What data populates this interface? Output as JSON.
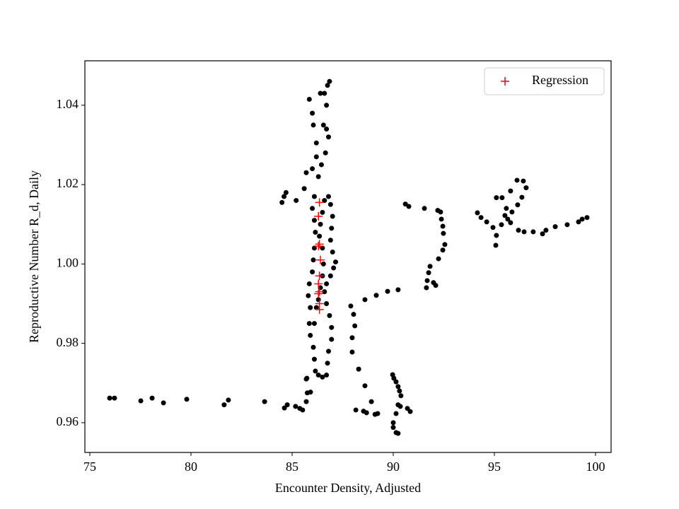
{
  "chart_data": {
    "type": "scatter",
    "xlabel": "Encounter Density, Adjusted",
    "ylabel": "Reproductive Number R_d, Daily",
    "xlim": [
      74.755,
      100.77
    ],
    "ylim": [
      0.9525,
      1.0512
    ],
    "xticks": [
      75,
      80,
      85,
      90,
      95,
      100
    ],
    "yticks": [
      0.96,
      0.98,
      {
        "value": 1,
        "label": "1.00"
      },
      1.02,
      1.04
    ],
    "legend": "upper right",
    "series": [
      {
        "color": "#000000",
        "marker": "circle",
        "x": [
          75.98,
          76.22,
          77.52,
          78.08,
          78.64,
          79.79,
          81.64,
          81.85,
          83.64,
          84.62,
          84.76,
          85.17,
          85.38,
          85.52,
          85.7,
          85.91,
          85.73,
          85.85,
          86.0,
          86.05,
          86.2,
          86.4,
          86.6,
          86.75,
          86.85,
          86.7,
          86.55,
          86.7,
          86.8,
          86.65,
          86.45,
          86.3,
          86.2,
          86.0,
          85.7,
          85.6,
          85.2,
          84.5,
          84.6,
          84.7,
          86.1,
          86.0,
          86.1,
          86.15,
          86.1,
          86.05,
          86.0,
          85.85,
          85.8,
          85.9,
          85.85,
          85.9,
          86.05,
          86.1,
          86.15,
          86.3,
          86.5,
          86.7,
          86.75,
          86.8,
          86.95,
          86.95,
          86.85,
          86.7,
          86.6,
          86.7,
          86.9,
          87.05,
          87.15,
          87.0,
          86.9,
          86.95,
          87.0,
          86.9,
          86.8,
          86.6,
          86.5,
          86.4,
          86.35,
          86.5,
          86.55,
          86.5,
          86.4,
          86.3,
          86.2,
          86.1,
          85.7,
          85.75,
          90.24,
          89.72,
          89.16,
          88.6,
          87.9,
          88.04,
          88.1,
          87.97,
          87.97,
          88.29,
          88.6,
          88.92,
          88.15,
          88.53,
          88.68,
          89.1,
          89.23,
          89.97,
          90.03,
          90.14,
          90.24,
          90.31,
          90.38,
          90.24,
          90.14,
          90.35,
          90.7,
          90.84,
          90.0,
          90.0,
          90.14,
          90.24,
          90.6,
          90.77,
          91.54,
          92.2,
          92.34,
          92.38,
          92.45,
          92.48,
          92.55,
          92.45,
          92.24,
          91.82,
          91.75,
          91.68,
          91.64,
          91.99,
          92.1,
          94.16,
          94.34,
          94.62,
          94.93,
          95.1,
          95.07,
          95.35,
          95.66,
          95.87,
          96.15,
          96.36,
          96.57,
          96.43,
          96.12,
          95.8,
          95.38,
          95.1,
          95.59,
          95.52,
          95.8,
          96.19,
          96.47,
          96.92,
          97.38,
          97.55,
          98.01,
          98.6,
          99.16,
          99.34,
          99.58
        ],
        "values": [
          0.9662,
          0.9662,
          0.9655,
          0.9662,
          0.965,
          0.9659,
          0.9645,
          0.9657,
          0.9653,
          0.9637,
          0.9645,
          0.9641,
          0.9636,
          0.9632,
          0.9653,
          0.9677,
          0.9712,
          1.0415,
          1.038,
          1.035,
          1.0305,
          1.043,
          1.043,
          1.045,
          1.046,
          1.04,
          1.035,
          1.034,
          1.032,
          1.028,
          1.025,
          1.022,
          1.027,
          1.024,
          1.023,
          1.019,
          1.016,
          1.0155,
          1.017,
          1.018,
          1.017,
          1.014,
          1.011,
          1.008,
          1.004,
          1.001,
          0.998,
          0.995,
          0.992,
          0.989,
          0.985,
          0.982,
          0.979,
          0.976,
          0.973,
          0.972,
          0.9715,
          0.972,
          0.975,
          0.978,
          0.981,
          0.984,
          0.987,
          0.99,
          0.993,
          0.995,
          0.997,
          0.999,
          1.0005,
          1.003,
          1.006,
          1.009,
          1.012,
          1.015,
          1.017,
          1.016,
          1.013,
          1.01,
          1.007,
          1.004,
          1.0,
          0.997,
          0.994,
          0.991,
          0.989,
          0.985,
          0.971,
          0.9675,
          0.9935,
          0.9931,
          0.9921,
          0.991,
          0.9894,
          0.9873,
          0.9844,
          0.9814,
          0.9778,
          0.9735,
          0.9693,
          0.9653,
          0.9632,
          0.9629,
          0.9625,
          0.9621,
          0.9623,
          0.9721,
          0.9712,
          0.9703,
          0.9691,
          0.968,
          0.9668,
          0.9645,
          0.9623,
          0.9641,
          0.9636,
          0.9628,
          0.96,
          0.9588,
          0.9575,
          0.9573,
          1.0151,
          1.0145,
          1.014,
          1.0135,
          1.0131,
          1.0113,
          1.0095,
          1.0077,
          1.0049,
          1.0035,
          1.0013,
          0.9994,
          0.9978,
          0.9958,
          0.994,
          0.9953,
          0.9946,
          1.0129,
          1.0117,
          1.0106,
          1.0092,
          1.0072,
          1.0047,
          1.0099,
          1.0113,
          1.0131,
          1.0149,
          1.0168,
          1.0192,
          1.0209,
          1.0211,
          1.0184,
          1.0167,
          1.0167,
          1.014,
          1.0122,
          1.0104,
          1.0085,
          1.0081,
          1.0081,
          1.0076,
          1.0085,
          1.0094,
          1.0099,
          1.0106,
          1.0113,
          1.0117
        ]
      },
      {
        "name": "Regression",
        "color": "#ff0000",
        "marker": "plus",
        "x": [
          86.35,
          86.3,
          86.35,
          86.3,
          86.4,
          86.35,
          86.3,
          86.35,
          86.3,
          86.35,
          86.35
        ],
        "values": [
          1.0155,
          1.012,
          1.005,
          1.0045,
          1.001,
          0.997,
          0.995,
          0.993,
          0.9925,
          0.99,
          0.9885
        ]
      }
    ]
  }
}
